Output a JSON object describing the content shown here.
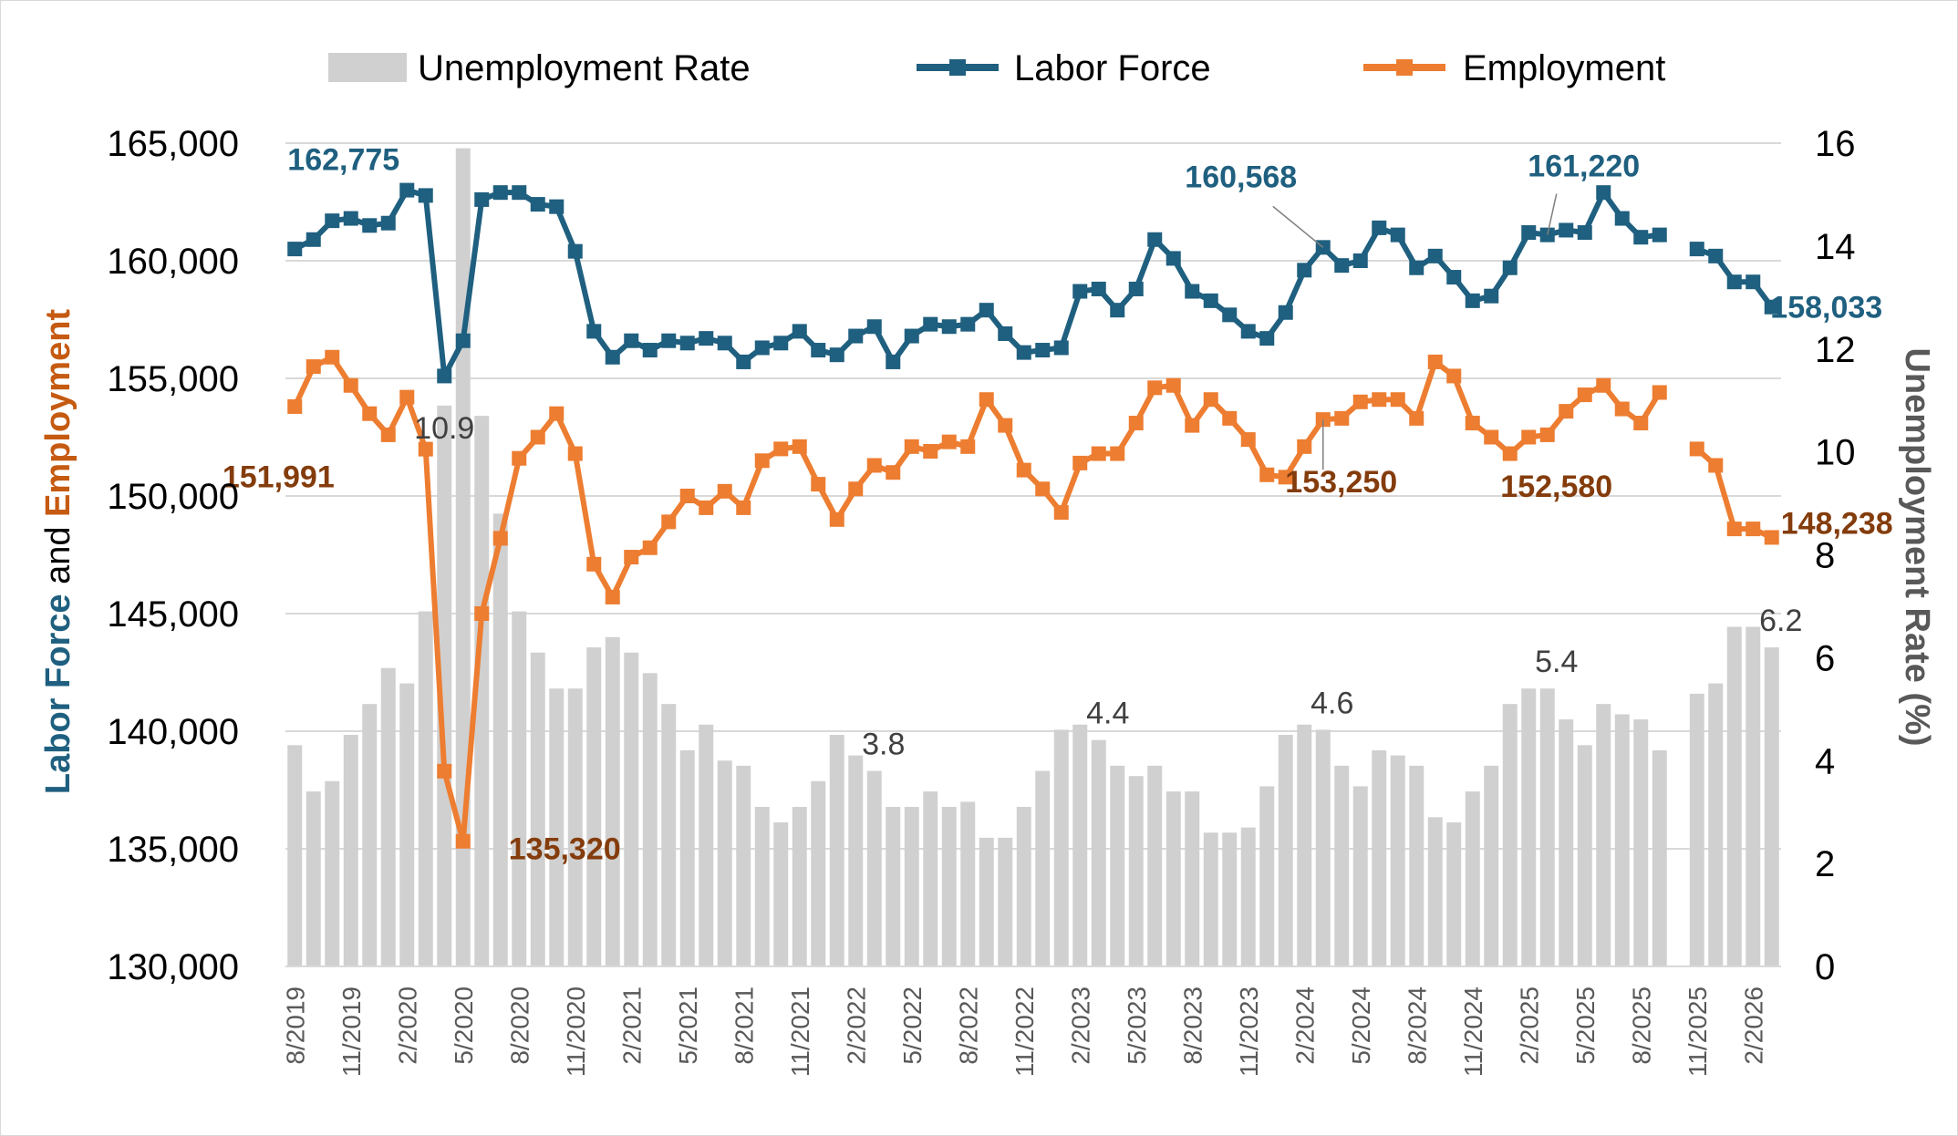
{
  "chart_data": {
    "type": "bar+line",
    "colors": {
      "unemployment_rate": "#d0d0d0",
      "labor_force": "#1f5f7f",
      "employment": "#ed7d31",
      "employment_label": "#843c0c",
      "grid": "#d9d9d9"
    },
    "x_labels": [
      "8/2019",
      "11/2019",
      "2/2020",
      "5/2020",
      "8/2020",
      "11/2020",
      "2/2021",
      "5/2021",
      "8/2021",
      "11/2021",
      "2/2022",
      "5/2022",
      "8/2022",
      "11/2022",
      "2/2023",
      "5/2023",
      "8/2023",
      "11/2023",
      "2/2024",
      "5/2024",
      "8/2024",
      "11/2024",
      "2/2025",
      "5/2025",
      "8/2025",
      "11/2025",
      "2/2026"
    ],
    "months": [
      "8/2019",
      "9/2019",
      "10/2019",
      "11/2019",
      "12/2019",
      "1/2020",
      "2/2020",
      "3/2020",
      "4/2020",
      "5/2020",
      "6/2020",
      "7/2020",
      "8/2020",
      "9/2020",
      "10/2020",
      "11/2020",
      "12/2020",
      "1/2021",
      "2/2021",
      "3/2021",
      "4/2021",
      "5/2021",
      "6/2021",
      "7/2021",
      "8/2021",
      "9/2021",
      "10/2021",
      "11/2021",
      "12/2021",
      "1/2022",
      "2/2022",
      "3/2022",
      "4/2022",
      "5/2022",
      "6/2022",
      "7/2022",
      "8/2022",
      "9/2022",
      "10/2022",
      "11/2022",
      "12/2022",
      "1/2023",
      "2/2023",
      "3/2023",
      "4/2023",
      "5/2023",
      "6/2023",
      "7/2023",
      "8/2023",
      "9/2023",
      "10/2023",
      "11/2023",
      "12/2023",
      "1/2024",
      "2/2024",
      "3/2024",
      "4/2024",
      "5/2024",
      "6/2024",
      "7/2024",
      "8/2024",
      "9/2024",
      "10/2024",
      "11/2024",
      "12/2024",
      "1/2025",
      "2/2025",
      "3/2025",
      "4/2025",
      "5/2025",
      "6/2025",
      "7/2025",
      "8/2025",
      "9/2025",
      "10/2025",
      "11/2025",
      "12/2025",
      "1/2026",
      "2/2026",
      "3/2026"
    ],
    "legend": [
      "Unemployment Rate",
      "Labor Force",
      "Employment"
    ],
    "y_left": {
      "title_part1": "Labor Force",
      "title_part2": " and ",
      "title_part3": "Employment",
      "min": 130000,
      "max": 165000,
      "step": 5000,
      "tick_labels": [
        "130,000",
        "135,000",
        "140,000",
        "145,000",
        "150,000",
        "155,000",
        "160,000",
        "165,000"
      ]
    },
    "y_right": {
      "title": "Unemployment Rate (%)",
      "min": 0,
      "max": 16,
      "step": 2,
      "tick_labels": [
        "0",
        "2",
        "4",
        "6",
        "8",
        "10",
        "12",
        "14",
        "16"
      ]
    },
    "grid": true,
    "legend_position": "top",
    "series": [
      {
        "name": "Unemployment Rate",
        "kind": "bar",
        "axis": "right",
        "values": [
          4.3,
          3.4,
          3.6,
          4.5,
          5.1,
          5.8,
          5.5,
          6.9,
          10.9,
          15.9,
          10.7,
          8.8,
          6.9,
          6.1,
          5.4,
          5.4,
          6.2,
          6.4,
          6.1,
          5.7,
          5.1,
          4.2,
          4.7,
          4.0,
          3.9,
          3.1,
          2.8,
          3.1,
          3.6,
          4.5,
          4.1,
          3.8,
          3.1,
          3.1,
          3.4,
          3.1,
          3.2,
          2.5,
          2.5,
          3.1,
          3.8,
          4.6,
          4.7,
          4.4,
          3.9,
          3.7,
          3.9,
          3.4,
          3.4,
          2.6,
          2.6,
          2.7,
          3.5,
          4.5,
          4.7,
          4.6,
          3.9,
          3.5,
          4.2,
          4.1,
          3.9,
          2.9,
          2.8,
          3.4,
          3.9,
          5.1,
          5.4,
          5.4,
          4.8,
          4.3,
          5.1,
          4.9,
          4.8,
          4.2,
          0,
          5.3,
          5.5,
          6.6,
          6.6,
          6.2
        ],
        "data_labels": [
          {
            "month": "4/2020",
            "text": "10.9"
          },
          {
            "month": "3/2022",
            "text": "3.8"
          },
          {
            "month": "3/2023",
            "text": "4.4"
          },
          {
            "month": "3/2024",
            "text": "4.6"
          },
          {
            "month": "3/2025",
            "text": "5.4"
          },
          {
            "month": "3/2026",
            "text": "6.2"
          }
        ]
      },
      {
        "name": "Labor Force",
        "kind": "line",
        "axis": "left",
        "values": [
          160500,
          160900,
          161700,
          161800,
          161500,
          161600,
          163000,
          162775,
          155100,
          156600,
          162600,
          162900,
          162900,
          162400,
          162300,
          160400,
          157000,
          155900,
          156600,
          156200,
          156600,
          156500,
          156700,
          156500,
          155700,
          156300,
          156500,
          157000,
          156200,
          156000,
          156800,
          157200,
          155700,
          156800,
          157300,
          157200,
          157300,
          157900,
          156900,
          156100,
          156200,
          156300,
          158700,
          158800,
          157900,
          158800,
          160900,
          160100,
          158700,
          158300,
          157700,
          157000,
          156700,
          157800,
          159600,
          160568,
          159800,
          160000,
          161400,
          161100,
          159700,
          160200,
          159300,
          158300,
          158500,
          159700,
          161200,
          161100,
          161300,
          161200,
          162900,
          161800,
          161000,
          161100,
          null,
          160500,
          160200,
          159100,
          159100,
          158033
        ],
        "data_labels": [
          {
            "month": "3/2020",
            "text": "162,775"
          },
          {
            "month": "3/2024",
            "text": "160,568"
          },
          {
            "month": "3/2025",
            "text": "161,220"
          },
          {
            "month": "3/2026",
            "text": "158,033"
          }
        ]
      },
      {
        "name": "Employment",
        "kind": "line",
        "axis": "left",
        "values": [
          153800,
          155500,
          155900,
          154700,
          153500,
          152600,
          154200,
          151991,
          138300,
          135320,
          145000,
          148200,
          151600,
          152500,
          153500,
          151800,
          147100,
          145700,
          147400,
          147800,
          148900,
          150000,
          149500,
          150200,
          149500,
          151500,
          152000,
          152100,
          150500,
          149000,
          150300,
          151300,
          151000,
          152100,
          151900,
          152300,
          152100,
          154100,
          153000,
          151100,
          150300,
          149300,
          151400,
          151800,
          151800,
          153100,
          154600,
          154700,
          153000,
          154100,
          153300,
          152400,
          150900,
          150800,
          152100,
          153250,
          153300,
          154000,
          154100,
          154100,
          153300,
          155700,
          155100,
          153100,
          152500,
          151800,
          152500,
          152600,
          153600,
          154300,
          154700,
          153700,
          153100,
          154400,
          null,
          152000,
          151300,
          148600,
          148600,
          148238
        ],
        "data_labels": [
          {
            "month": "3/2020",
            "text": "151,991"
          },
          {
            "month": "5/2020",
            "text": "135,320"
          },
          {
            "month": "3/2024",
            "text": "153,250"
          },
          {
            "month": "3/2025",
            "text": "152,580"
          },
          {
            "month": "3/2026",
            "text": "148,238"
          }
        ]
      }
    ]
  }
}
